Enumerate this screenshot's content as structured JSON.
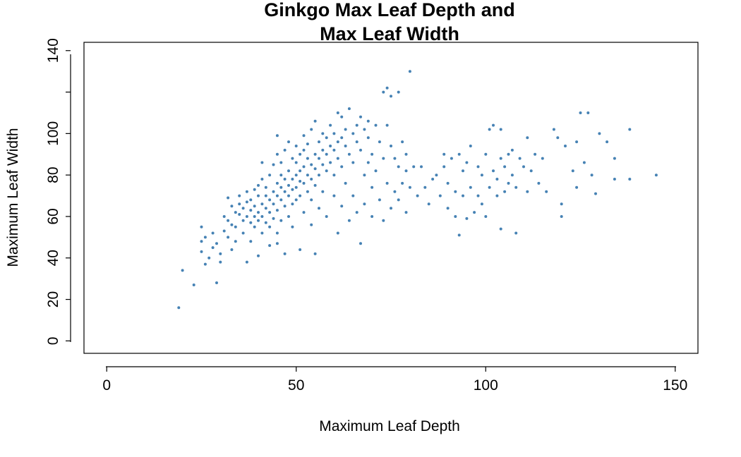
{
  "chart_data": {
    "type": "scatter",
    "title_lines": [
      "Ginkgo Max Leaf Depth and",
      "Max Leaf Width"
    ],
    "xlabel": "Maximum Leaf Depth",
    "ylabel": "Maximum Leaf Width",
    "xlim": [
      -6,
      156
    ],
    "ylim": [
      -6,
      144
    ],
    "x_ticks": [
      0,
      50,
      100,
      150
    ],
    "x_tick_labels": [
      "0",
      "50",
      "100",
      "150"
    ],
    "y_ticks": [
      0,
      20,
      40,
      60,
      80,
      100,
      120,
      140
    ],
    "y_tick_labels": [
      "0",
      "20",
      "40",
      "60",
      "80",
      "100",
      "",
      "140"
    ],
    "grid": false,
    "legend": "none",
    "point_color": "#4682B4",
    "series": [
      {
        "points": [
          [
            19,
            16
          ],
          [
            20,
            34
          ],
          [
            23,
            27
          ],
          [
            25,
            55
          ],
          [
            25,
            48
          ],
          [
            25,
            43
          ],
          [
            26,
            37
          ],
          [
            26,
            50
          ],
          [
            27,
            40
          ],
          [
            28,
            45
          ],
          [
            28,
            52
          ],
          [
            29,
            47
          ],
          [
            29,
            28
          ],
          [
            30,
            38
          ],
          [
            30,
            42
          ],
          [
            31,
            53
          ],
          [
            31,
            60
          ],
          [
            32,
            50
          ],
          [
            32,
            58
          ],
          [
            32,
            69
          ],
          [
            33,
            56
          ],
          [
            33,
            65
          ],
          [
            33,
            44
          ],
          [
            34,
            62
          ],
          [
            34,
            55
          ],
          [
            34,
            48
          ],
          [
            35,
            61
          ],
          [
            35,
            66
          ],
          [
            35,
            70
          ],
          [
            36,
            58
          ],
          [
            36,
            64
          ],
          [
            36,
            52
          ],
          [
            37,
            67
          ],
          [
            37,
            60
          ],
          [
            37,
            72
          ],
          [
            37,
            38
          ],
          [
            38,
            63
          ],
          [
            38,
            57
          ],
          [
            38,
            68
          ],
          [
            38,
            48
          ],
          [
            39,
            65
          ],
          [
            39,
            60
          ],
          [
            39,
            73
          ],
          [
            39,
            55
          ],
          [
            40,
            62
          ],
          [
            40,
            70
          ],
          [
            40,
            75
          ],
          [
            40,
            58
          ],
          [
            40,
            41
          ],
          [
            41,
            66
          ],
          [
            41,
            60
          ],
          [
            41,
            78
          ],
          [
            41,
            86
          ],
          [
            41,
            52
          ],
          [
            42,
            64
          ],
          [
            42,
            70
          ],
          [
            42,
            57
          ],
          [
            42,
            74
          ],
          [
            43,
            68
          ],
          [
            43,
            62
          ],
          [
            43,
            80
          ],
          [
            43,
            55
          ],
          [
            43,
            46
          ],
          [
            44,
            72
          ],
          [
            44,
            66
          ],
          [
            44,
            59
          ],
          [
            44,
            85
          ],
          [
            45,
            70
          ],
          [
            45,
            76
          ],
          [
            45,
            63
          ],
          [
            45,
            90
          ],
          [
            45,
            99
          ],
          [
            45,
            52
          ],
          [
            45,
            47
          ],
          [
            46,
            74
          ],
          [
            46,
            68
          ],
          [
            46,
            80
          ],
          [
            46,
            58
          ],
          [
            46,
            86
          ],
          [
            47,
            72
          ],
          [
            47,
            78
          ],
          [
            47,
            65
          ],
          [
            47,
            92
          ],
          [
            47,
            42
          ],
          [
            48,
            75
          ],
          [
            48,
            70
          ],
          [
            48,
            82
          ],
          [
            48,
            96
          ],
          [
            48,
            60
          ],
          [
            49,
            78
          ],
          [
            49,
            73
          ],
          [
            49,
            88
          ],
          [
            49,
            66
          ],
          [
            49,
            55
          ],
          [
            50,
            80
          ],
          [
            50,
            74
          ],
          [
            50,
            86
          ],
          [
            50,
            94
          ],
          [
            50,
            68
          ],
          [
            51,
            77
          ],
          [
            51,
            82
          ],
          [
            51,
            90
          ],
          [
            51,
            70
          ],
          [
            51,
            44
          ],
          [
            52,
            84
          ],
          [
            52,
            76
          ],
          [
            52,
            92
          ],
          [
            52,
            62
          ],
          [
            52,
            99
          ],
          [
            53,
            80
          ],
          [
            53,
            88
          ],
          [
            53,
            72
          ],
          [
            53,
            95
          ],
          [
            54,
            85
          ],
          [
            54,
            78
          ],
          [
            54,
            102
          ],
          [
            54,
            68
          ],
          [
            54,
            56
          ],
          [
            55,
            83
          ],
          [
            55,
            90
          ],
          [
            55,
            75
          ],
          [
            55,
            106
          ],
          [
            55,
            42
          ],
          [
            56,
            88
          ],
          [
            56,
            80
          ],
          [
            56,
            96
          ],
          [
            56,
            64
          ],
          [
            57,
            85
          ],
          [
            57,
            92
          ],
          [
            57,
            100
          ],
          [
            57,
            72
          ],
          [
            58,
            90
          ],
          [
            58,
            82
          ],
          [
            58,
            98
          ],
          [
            58,
            60
          ],
          [
            59,
            94
          ],
          [
            59,
            86
          ],
          [
            59,
            104
          ],
          [
            60,
            92
          ],
          [
            60,
            80
          ],
          [
            60,
            100
          ],
          [
            60,
            70
          ],
          [
            61,
            96
          ],
          [
            61,
            110
          ],
          [
            61,
            88
          ],
          [
            61,
            52
          ],
          [
            62,
            98
          ],
          [
            62,
            84
          ],
          [
            62,
            108
          ],
          [
            62,
            65
          ],
          [
            63,
            94
          ],
          [
            63,
            102
          ],
          [
            63,
            76
          ],
          [
            64,
            112
          ],
          [
            64,
            90
          ],
          [
            64,
            58
          ],
          [
            65,
            100
          ],
          [
            65,
            86
          ],
          [
            65,
            70
          ],
          [
            66,
            104
          ],
          [
            66,
            96
          ],
          [
            66,
            62
          ],
          [
            67,
            108
          ],
          [
            67,
            92
          ],
          [
            67,
            47
          ],
          [
            68,
            102
          ],
          [
            68,
            80
          ],
          [
            68,
            66
          ],
          [
            69,
            98
          ],
          [
            69,
            106
          ],
          [
            69,
            86
          ],
          [
            70,
            90
          ],
          [
            70,
            74
          ],
          [
            70,
            60
          ],
          [
            71,
            104
          ],
          [
            71,
            82
          ],
          [
            72,
            96
          ],
          [
            72,
            68
          ],
          [
            73,
            120
          ],
          [
            73,
            88
          ],
          [
            73,
            58
          ],
          [
            74,
            122
          ],
          [
            74,
            104
          ],
          [
            74,
            76
          ],
          [
            75,
            118
          ],
          [
            75,
            94
          ],
          [
            75,
            64
          ],
          [
            76,
            88
          ],
          [
            76,
            72
          ],
          [
            77,
            120
          ],
          [
            77,
            84
          ],
          [
            77,
            68
          ],
          [
            78,
            96
          ],
          [
            78,
            76
          ],
          [
            79,
            90
          ],
          [
            79,
            82
          ],
          [
            79,
            62
          ],
          [
            80,
            130
          ],
          [
            80,
            74
          ],
          [
            81,
            84
          ],
          [
            82,
            70
          ],
          [
            83,
            84
          ],
          [
            84,
            74
          ],
          [
            85,
            66
          ],
          [
            86,
            78
          ],
          [
            87,
            80
          ],
          [
            88,
            70
          ],
          [
            89,
            84
          ],
          [
            89,
            90
          ],
          [
            90,
            76
          ],
          [
            90,
            64
          ],
          [
            91,
            88
          ],
          [
            92,
            72
          ],
          [
            92,
            60
          ],
          [
            93,
            90
          ],
          [
            93,
            51
          ],
          [
            94,
            82
          ],
          [
            94,
            70
          ],
          [
            95,
            86
          ],
          [
            95,
            59
          ],
          [
            96,
            94
          ],
          [
            96,
            74
          ],
          [
            97,
            62
          ],
          [
            98,
            84
          ],
          [
            98,
            70
          ],
          [
            99,
            80
          ],
          [
            99,
            66
          ],
          [
            100,
            90
          ],
          [
            100,
            60
          ],
          [
            101,
            102
          ],
          [
            101,
            74
          ],
          [
            102,
            104
          ],
          [
            102,
            82
          ],
          [
            103,
            78
          ],
          [
            103,
            70
          ],
          [
            104,
            88
          ],
          [
            104,
            102
          ],
          [
            104,
            54
          ],
          [
            105,
            84
          ],
          [
            105,
            72
          ],
          [
            106,
            90
          ],
          [
            106,
            76
          ],
          [
            107,
            80
          ],
          [
            107,
            92
          ],
          [
            108,
            74
          ],
          [
            108,
            52
          ],
          [
            109,
            88
          ],
          [
            110,
            84
          ],
          [
            111,
            98
          ],
          [
            111,
            72
          ],
          [
            112,
            82
          ],
          [
            113,
            90
          ],
          [
            114,
            76
          ],
          [
            115,
            88
          ],
          [
            116,
            72
          ],
          [
            118,
            102
          ],
          [
            119,
            98
          ],
          [
            120,
            66
          ],
          [
            120,
            60
          ],
          [
            121,
            94
          ],
          [
            123,
            82
          ],
          [
            124,
            96
          ],
          [
            124,
            74
          ],
          [
            125,
            110
          ],
          [
            126,
            86
          ],
          [
            127,
            110
          ],
          [
            128,
            80
          ],
          [
            129,
            71
          ],
          [
            130,
            100
          ],
          [
            132,
            96
          ],
          [
            134,
            88
          ],
          [
            134,
            78
          ],
          [
            138,
            102
          ],
          [
            138,
            78
          ],
          [
            145,
            80
          ]
        ]
      }
    ]
  }
}
